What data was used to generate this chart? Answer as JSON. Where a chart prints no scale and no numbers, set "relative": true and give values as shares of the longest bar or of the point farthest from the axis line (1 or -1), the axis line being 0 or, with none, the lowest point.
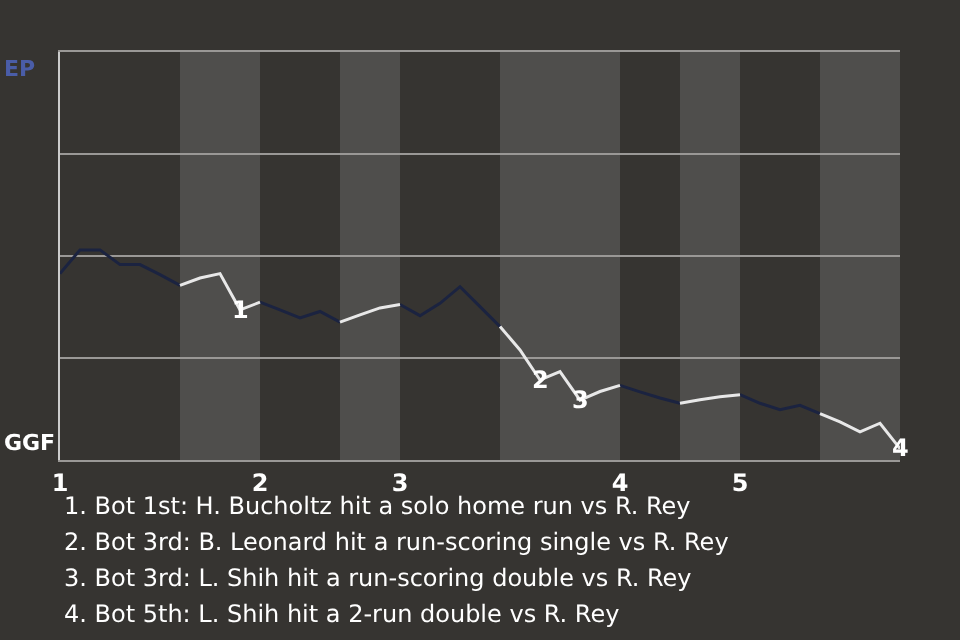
{
  "chart_data": {
    "type": "line",
    "relative": true,
    "categories": [
      "1",
      null,
      null,
      null,
      null,
      null,
      null,
      null,
      null,
      null,
      "2",
      null,
      null,
      null,
      null,
      null,
      null,
      "3",
      null,
      null,
      null,
      null,
      null,
      null,
      null,
      null,
      null,
      null,
      "4",
      null,
      null,
      null,
      null,
      null,
      "5",
      null,
      null,
      null,
      null,
      null,
      null,
      null,
      null
    ],
    "marker": "none",
    "line_style": "solid",
    "ref_lines": [
      {
        "axis": "y",
        "value": 0.485,
        "color": "#9a9896"
      },
      {
        "axis": "y",
        "value": 0.971,
        "color": "#9a9896"
      },
      {
        "axis": "y",
        "value": 1.456,
        "color": "#9a9896"
      }
    ],
    "series": [
      {
        "color": "#1b2340",
        "values": [
          0.887,
          1,
          1,
          0.93,
          0.93,
          0.882,
          0.831,
          null,
          null,
          null,
          0.751,
          0.715,
          0.676,
          0.707,
          0.656,
          null,
          null,
          0.74,
          0.687,
          0.746,
          0.825,
          0.73,
          0.635,
          null,
          null,
          null,
          null,
          null,
          0.355,
          0.324,
          0.295,
          0.27,
          null,
          null,
          0.311,
          0.27,
          0.239,
          0.26,
          0.221,
          null,
          null,
          null,
          null
        ]
      },
      {
        "color": "#e8e8e8",
        "values": [
          null,
          null,
          null,
          null,
          null,
          null,
          0.831,
          0.866,
          0.887,
          0.715,
          0.751,
          null,
          null,
          null,
          0.656,
          0.691,
          0.724,
          0.74,
          null,
          null,
          null,
          null,
          0.635,
          0.524,
          0.381,
          0.421,
          0.285,
          0.326,
          0.355,
          null,
          null,
          0.27,
          0.287,
          0.301,
          0.311,
          null,
          null,
          null,
          0.221,
          0.181,
          0.134,
          0.175,
          0.054
        ]
      }
    ],
    "annotations": [
      "EP",
      "GGF",
      {
        "text": "1",
        "y": 0.715
      },
      {
        "text": "2",
        "y": 0.381
      },
      {
        "text": "3",
        "y": 0.285
      },
      {
        "text": "4",
        "y": 0.054
      },
      "1. Bot 1st: H. Bucholtz hit a solo home run vs R. Rey",
      "2. Bot 3rd: B. Leonard hit a run-scoring single vs R. Rey",
      "3. Bot 3rd: L. Shih hit a run-scoring double vs R. Rey",
      "4. Bot 5th: L. Shih hit a 2-run double vs R. Rey"
    ]
  }
}
